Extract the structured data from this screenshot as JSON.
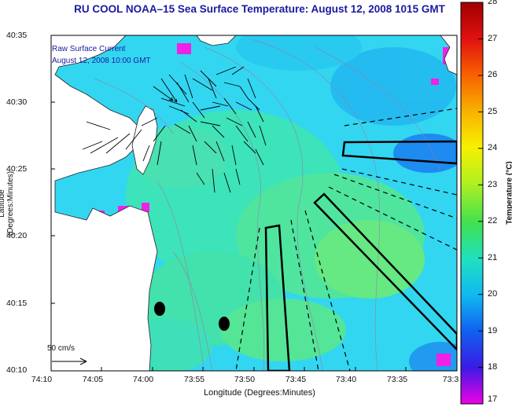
{
  "title": "RU COOL  NOAA–15  Sea Surface Temperature:  August 12, 2008 1015 GMT",
  "annotation": {
    "line1": "Raw Surface Current",
    "line2": "August 12, 2008 10:00 GMT"
  },
  "axes": {
    "xlabel": "Longitude (Degrees:Minutes)",
    "ylabel": "Latitude (Degrees:Minutes)",
    "x_ticks": [
      "74:10",
      "74:05",
      "74:00",
      "73:55",
      "73:50",
      "73:45",
      "73:40",
      "73:35",
      "73:3"
    ],
    "y_ticks": [
      "40:35",
      "40:30",
      "40:25",
      "40:20",
      "40:15",
      "40:10"
    ]
  },
  "colorbar": {
    "label": "Temperature (°C)",
    "ticks": [
      "28",
      "27",
      "26",
      "25",
      "24",
      "23",
      "22",
      "21",
      "20",
      "19",
      "18",
      "17"
    ],
    "min": 17,
    "max": 28
  },
  "scale": {
    "label": "50 cm/s"
  },
  "colors": {
    "title": "#1a1aa0",
    "land": "#ffffff",
    "ocean_base": "#33d6f0"
  }
}
